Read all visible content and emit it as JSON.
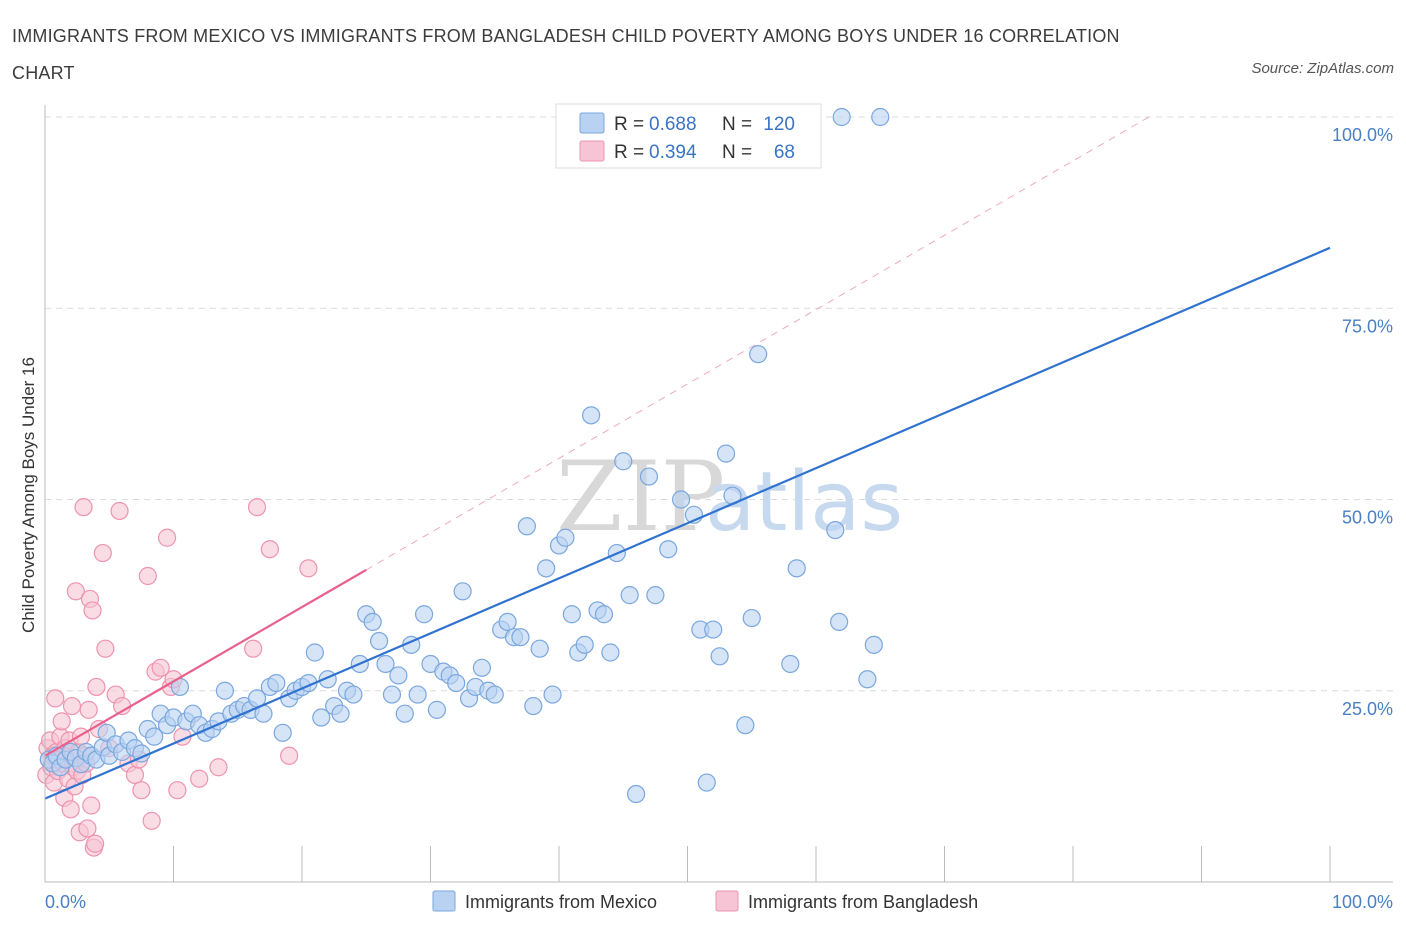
{
  "title": "IMMIGRANTS FROM MEXICO VS IMMIGRANTS FROM BANGLADESH CHILD POVERTY AMONG BOYS UNDER 16 CORRELATION CHART",
  "source": "Source: ZipAtlas.com",
  "watermark": {
    "zip": "ZIP",
    "atlas": "atlas"
  },
  "colors": {
    "mexico_fill": "#b9d2f1",
    "mexico_stroke": "#7aa7de",
    "mexico_line": "#2f72cf",
    "bangladesh_fill": "#f6c4d4",
    "bangladesh_stroke": "#ee93b0",
    "bangladesh_line": "#e8608c",
    "tick_label": "#4a7fc4",
    "grid": "#dcdcdc"
  },
  "legend_stats": [
    {
      "r_label": "R =",
      "r_value": "0.688",
      "n_label": "N =",
      "n_value": "120"
    },
    {
      "r_label": "R =",
      "r_value": "0.394",
      "n_label": "N =",
      "n_value": "68"
    }
  ],
  "chart_data": {
    "type": "scatter",
    "title": "IMMIGRANTS FROM MEXICO VS IMMIGRANTS FROM BANGLADESH CHILD POVERTY AMONG BOYS UNDER 16 CORRELATION CHART",
    "xlabel": "",
    "ylabel": "Child Poverty Among Boys Under 16",
    "xlim": [
      0,
      100
    ],
    "ylim": [
      0,
      100
    ],
    "x_tick_labels": [
      "0.0%",
      "100.0%"
    ],
    "y_ticks": [
      25,
      50,
      75,
      100
    ],
    "y_tick_labels": [
      "25.0%",
      "50.0%",
      "75.0%",
      "100.0%"
    ],
    "grid": true,
    "legend_position": "bottom-center",
    "series": [
      {
        "name": "Immigrants from Mexico",
        "trend": {
          "x": [
            0,
            100
          ],
          "y": [
            10.9,
            82.9
          ]
        },
        "points": [
          [
            0.3,
            16.0
          ],
          [
            0.6,
            15.5
          ],
          [
            0.9,
            16.5
          ],
          [
            1.2,
            15.0
          ],
          [
            1.6,
            16.0
          ],
          [
            2.0,
            17.0
          ],
          [
            2.4,
            16.2
          ],
          [
            2.8,
            15.4
          ],
          [
            3.2,
            17.0
          ],
          [
            3.6,
            16.5
          ],
          [
            4.0,
            16.0
          ],
          [
            4.5,
            17.6
          ],
          [
            5.0,
            16.5
          ],
          [
            4.8,
            19.5
          ],
          [
            5.5,
            18.0
          ],
          [
            6.0,
            17.0
          ],
          [
            6.5,
            18.5
          ],
          [
            7.0,
            17.5
          ],
          [
            7.5,
            16.8
          ],
          [
            8.0,
            20.0
          ],
          [
            8.5,
            19.0
          ],
          [
            9.0,
            22.0
          ],
          [
            9.5,
            20.5
          ],
          [
            10.0,
            21.5
          ],
          [
            10.5,
            25.5
          ],
          [
            11.0,
            21.0
          ],
          [
            11.5,
            22.0
          ],
          [
            12.0,
            20.5
          ],
          [
            12.5,
            19.5
          ],
          [
            13.0,
            20.0
          ],
          [
            13.5,
            21.0
          ],
          [
            14.0,
            25.0
          ],
          [
            14.5,
            22.0
          ],
          [
            15.0,
            22.5
          ],
          [
            15.5,
            23.0
          ],
          [
            16.0,
            22.5
          ],
          [
            16.5,
            24.0
          ],
          [
            17.0,
            22.0
          ],
          [
            17.5,
            25.5
          ],
          [
            18.0,
            26.0
          ],
          [
            18.5,
            19.5
          ],
          [
            19.0,
            24.0
          ],
          [
            19.5,
            25.0
          ],
          [
            20.0,
            25.5
          ],
          [
            20.5,
            26.0
          ],
          [
            21.0,
            30.0
          ],
          [
            21.5,
            21.5
          ],
          [
            22.0,
            26.5
          ],
          [
            22.5,
            23.0
          ],
          [
            23.0,
            22.0
          ],
          [
            23.5,
            25.0
          ],
          [
            24.0,
            24.5
          ],
          [
            24.5,
            28.5
          ],
          [
            25.0,
            35.0
          ],
          [
            25.5,
            34.0
          ],
          [
            26.0,
            31.5
          ],
          [
            26.5,
            28.5
          ],
          [
            27.0,
            24.5
          ],
          [
            27.5,
            27.0
          ],
          [
            28.0,
            22.0
          ],
          [
            28.5,
            31.0
          ],
          [
            29.0,
            24.5
          ],
          [
            29.5,
            35.0
          ],
          [
            30.0,
            28.5
          ],
          [
            30.5,
            22.5
          ],
          [
            31.0,
            27.5
          ],
          [
            31.5,
            27.0
          ],
          [
            32.0,
            26.0
          ],
          [
            32.5,
            38.0
          ],
          [
            33.0,
            24.0
          ],
          [
            33.5,
            25.5
          ],
          [
            34.0,
            28.0
          ],
          [
            34.5,
            25.0
          ],
          [
            35.0,
            24.5
          ],
          [
            35.5,
            33.0
          ],
          [
            36.0,
            34.0
          ],
          [
            36.5,
            32.0
          ],
          [
            37.0,
            32.0
          ],
          [
            37.5,
            46.5
          ],
          [
            38.0,
            23.0
          ],
          [
            38.5,
            30.5
          ],
          [
            39.0,
            41.0
          ],
          [
            39.5,
            24.5
          ],
          [
            40.0,
            44.0
          ],
          [
            40.5,
            45.0
          ],
          [
            41.0,
            35.0
          ],
          [
            41.5,
            30.0
          ],
          [
            42.0,
            31.0
          ],
          [
            42.5,
            61.0
          ],
          [
            43.0,
            35.5
          ],
          [
            43.5,
            35.0
          ],
          [
            44.0,
            30.0
          ],
          [
            44.5,
            43.0
          ],
          [
            45.0,
            55.0
          ],
          [
            45.5,
            37.5
          ],
          [
            46.0,
            11.5
          ],
          [
            47.0,
            53.0
          ],
          [
            47.5,
            37.5
          ],
          [
            48.5,
            43.5
          ],
          [
            49.5,
            50.0
          ],
          [
            50.5,
            48.0
          ],
          [
            51.0,
            33.0
          ],
          [
            52.0,
            33.0
          ],
          [
            51.5,
            13.0
          ],
          [
            52.5,
            29.5
          ],
          [
            53.0,
            56.0
          ],
          [
            53.5,
            50.5
          ],
          [
            54.5,
            20.5
          ],
          [
            55.0,
            34.5
          ],
          [
            55.5,
            69.0
          ],
          [
            55.8,
            100.0
          ],
          [
            58.0,
            28.5
          ],
          [
            58.5,
            41.0
          ],
          [
            59.5,
            100.0
          ],
          [
            61.5,
            46.0
          ],
          [
            61.8,
            34.0
          ],
          [
            62.0,
            100.0
          ],
          [
            64.0,
            26.5
          ],
          [
            64.5,
            31.0
          ],
          [
            65.0,
            100.0
          ]
        ]
      },
      {
        "name": "Immigrants from Bangladesh",
        "trend": {
          "x": [
            0,
            25
          ],
          "y": [
            16.5,
            40.8
          ]
        },
        "points": [
          [
            0.1,
            14.0
          ],
          [
            0.2,
            17.5
          ],
          [
            0.3,
            16.0
          ],
          [
            0.4,
            18.5
          ],
          [
            0.5,
            15.0
          ],
          [
            0.6,
            16.5
          ],
          [
            0.7,
            13.0
          ],
          [
            0.8,
            24.0
          ],
          [
            0.9,
            17.0
          ],
          [
            1.0,
            14.5
          ],
          [
            1.1,
            16.0
          ],
          [
            1.2,
            19.0
          ],
          [
            1.3,
            21.0
          ],
          [
            1.4,
            15.5
          ],
          [
            1.5,
            11.0
          ],
          [
            1.6,
            17.5
          ],
          [
            1.7,
            16.0
          ],
          [
            1.8,
            13.5
          ],
          [
            1.9,
            18.5
          ],
          [
            2.0,
            9.5
          ],
          [
            2.1,
            23.0
          ],
          [
            2.2,
            15.0
          ],
          [
            2.3,
            12.5
          ],
          [
            2.4,
            38.0
          ],
          [
            2.5,
            14.5
          ],
          [
            2.6,
            17.0
          ],
          [
            2.7,
            6.5
          ],
          [
            2.8,
            19.0
          ],
          [
            2.9,
            14.0
          ],
          [
            3.0,
            49.0
          ],
          [
            3.1,
            16.5
          ],
          [
            3.2,
            15.5
          ],
          [
            3.3,
            7.0
          ],
          [
            3.4,
            22.5
          ],
          [
            3.5,
            37.0
          ],
          [
            3.6,
            10.0
          ],
          [
            3.7,
            35.5
          ],
          [
            3.8,
            4.5
          ],
          [
            3.9,
            5.0
          ],
          [
            4.0,
            25.5
          ],
          [
            4.2,
            20.0
          ],
          [
            4.5,
            43.0
          ],
          [
            4.7,
            30.5
          ],
          [
            5.0,
            17.5
          ],
          [
            5.5,
            24.5
          ],
          [
            5.8,
            48.5
          ],
          [
            6.0,
            23.0
          ],
          [
            6.5,
            15.5
          ],
          [
            7.0,
            14.0
          ],
          [
            7.3,
            16.0
          ],
          [
            7.5,
            12.0
          ],
          [
            8.0,
            40.0
          ],
          [
            8.3,
            8.0
          ],
          [
            8.6,
            27.5
          ],
          [
            9.0,
            28.0
          ],
          [
            9.5,
            45.0
          ],
          [
            9.8,
            25.5
          ],
          [
            10.0,
            26.5
          ],
          [
            10.3,
            12.0
          ],
          [
            10.7,
            19.0
          ],
          [
            12.0,
            13.5
          ],
          [
            13.5,
            15.0
          ],
          [
            16.2,
            30.5
          ],
          [
            16.5,
            49.0
          ],
          [
            17.5,
            43.5
          ],
          [
            19.0,
            16.5
          ],
          [
            20.5,
            41.0
          ],
          [
            1.0,
            16.0
          ]
        ]
      }
    ]
  }
}
